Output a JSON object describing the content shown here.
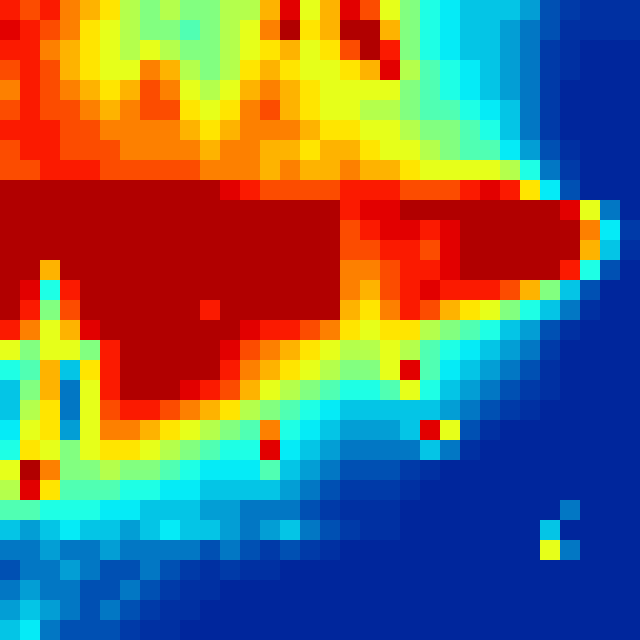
{
  "chart_data": {
    "type": "heatmap",
    "color": "Jet",
    "zlim": [
      0,
      1
    ],
    "tick_labels": false,
    "z": [
      [
        0.85,
        0.8,
        0.85,
        0.75,
        0.7,
        0.65,
        0.55,
        0.5,
        0.55,
        0.5,
        0.5,
        0.55,
        0.55,
        0.7,
        0.9,
        0.6,
        0.7,
        0.9,
        0.8,
        0.6,
        0.5,
        0.4,
        0.35,
        0.3,
        0.3,
        0.3,
        0.25,
        0.15,
        0.12,
        0.1,
        0.1,
        0.1
      ],
      [
        0.9,
        0.85,
        0.8,
        0.75,
        0.65,
        0.6,
        0.55,
        0.5,
        0.5,
        0.45,
        0.5,
        0.55,
        0.6,
        0.75,
        0.95,
        0.65,
        0.7,
        0.95,
        0.95,
        0.7,
        0.5,
        0.4,
        0.35,
        0.3,
        0.3,
        0.25,
        0.2,
        0.15,
        0.1,
        0.1,
        0.1,
        0.1
      ],
      [
        0.85,
        0.85,
        0.75,
        0.7,
        0.65,
        0.6,
        0.55,
        0.6,
        0.55,
        0.5,
        0.5,
        0.55,
        0.6,
        0.65,
        0.7,
        0.6,
        0.65,
        0.8,
        0.95,
        0.85,
        0.5,
        0.4,
        0.35,
        0.3,
        0.3,
        0.25,
        0.2,
        0.12,
        0.1,
        0.08,
        0.08,
        0.08
      ],
      [
        0.8,
        0.85,
        0.8,
        0.7,
        0.65,
        0.6,
        0.6,
        0.75,
        0.7,
        0.55,
        0.5,
        0.55,
        0.65,
        0.7,
        0.65,
        0.6,
        0.6,
        0.65,
        0.7,
        0.9,
        0.55,
        0.45,
        0.4,
        0.35,
        0.3,
        0.25,
        0.2,
        0.12,
        0.1,
        0.08,
        0.08,
        0.08
      ],
      [
        0.75,
        0.85,
        0.8,
        0.75,
        0.7,
        0.65,
        0.7,
        0.8,
        0.75,
        0.6,
        0.55,
        0.6,
        0.7,
        0.75,
        0.7,
        0.65,
        0.6,
        0.6,
        0.6,
        0.6,
        0.5,
        0.45,
        0.4,
        0.35,
        0.3,
        0.25,
        0.2,
        0.12,
        0.08,
        0.08,
        0.08,
        0.08
      ],
      [
        0.8,
        0.85,
        0.8,
        0.8,
        0.75,
        0.7,
        0.75,
        0.8,
        0.8,
        0.65,
        0.6,
        0.65,
        0.75,
        0.8,
        0.7,
        0.65,
        0.6,
        0.6,
        0.55,
        0.55,
        0.5,
        0.45,
        0.45,
        0.4,
        0.35,
        0.3,
        0.2,
        0.12,
        0.08,
        0.08,
        0.08,
        0.08
      ],
      [
        0.85,
        0.85,
        0.85,
        0.8,
        0.8,
        0.75,
        0.75,
        0.75,
        0.75,
        0.7,
        0.65,
        0.7,
        0.75,
        0.75,
        0.75,
        0.7,
        0.65,
        0.65,
        0.6,
        0.6,
        0.55,
        0.5,
        0.5,
        0.45,
        0.4,
        0.3,
        0.2,
        0.12,
        0.08,
        0.08,
        0.08,
        0.08
      ],
      [
        0.8,
        0.85,
        0.85,
        0.8,
        0.8,
        0.8,
        0.75,
        0.75,
        0.75,
        0.75,
        0.7,
        0.75,
        0.75,
        0.7,
        0.7,
        0.65,
        0.7,
        0.7,
        0.65,
        0.6,
        0.6,
        0.55,
        0.5,
        0.45,
        0.45,
        0.35,
        0.25,
        0.15,
        0.1,
        0.08,
        0.08,
        0.08
      ],
      [
        0.8,
        0.8,
        0.85,
        0.85,
        0.85,
        0.8,
        0.8,
        0.8,
        0.8,
        0.8,
        0.75,
        0.75,
        0.75,
        0.7,
        0.75,
        0.7,
        0.7,
        0.75,
        0.7,
        0.7,
        0.65,
        0.6,
        0.6,
        0.6,
        0.6,
        0.55,
        0.4,
        0.2,
        0.12,
        0.08,
        0.08,
        0.08
      ],
      [
        0.95,
        0.95,
        0.95,
        0.95,
        0.95,
        0.95,
        0.95,
        0.95,
        0.95,
        0.95,
        0.95,
        0.9,
        0.85,
        0.8,
        0.8,
        0.8,
        0.8,
        0.85,
        0.85,
        0.85,
        0.8,
        0.8,
        0.8,
        0.85,
        0.9,
        0.85,
        0.65,
        0.35,
        0.15,
        0.08,
        0.08,
        0.08
      ],
      [
        0.95,
        0.95,
        0.95,
        0.95,
        0.95,
        0.95,
        0.95,
        0.95,
        0.95,
        0.95,
        0.95,
        0.95,
        0.95,
        0.95,
        0.95,
        0.95,
        0.95,
        0.85,
        0.9,
        0.9,
        0.95,
        0.95,
        0.95,
        0.95,
        0.95,
        0.95,
        0.95,
        0.95,
        0.9,
        0.6,
        0.2,
        0.08
      ],
      [
        0.95,
        0.95,
        0.95,
        0.95,
        0.95,
        0.95,
        0.95,
        0.95,
        0.95,
        0.95,
        0.95,
        0.95,
        0.95,
        0.95,
        0.95,
        0.95,
        0.95,
        0.8,
        0.85,
        0.9,
        0.9,
        0.85,
        0.9,
        0.95,
        0.95,
        0.95,
        0.95,
        0.95,
        0.95,
        0.75,
        0.35,
        0.12
      ],
      [
        0.95,
        0.95,
        0.95,
        0.95,
        0.95,
        0.95,
        0.95,
        0.95,
        0.95,
        0.95,
        0.95,
        0.95,
        0.95,
        0.95,
        0.95,
        0.95,
        0.95,
        0.8,
        0.8,
        0.85,
        0.85,
        0.8,
        0.9,
        0.95,
        0.95,
        0.95,
        0.95,
        0.95,
        0.95,
        0.7,
        0.3,
        0.1
      ],
      [
        0.95,
        0.95,
        0.7,
        0.95,
        0.95,
        0.95,
        0.95,
        0.95,
        0.95,
        0.95,
        0.95,
        0.95,
        0.95,
        0.95,
        0.95,
        0.95,
        0.95,
        0.75,
        0.75,
        0.8,
        0.85,
        0.85,
        0.9,
        0.95,
        0.95,
        0.95,
        0.95,
        0.95,
        0.85,
        0.4,
        0.15,
        0.08
      ],
      [
        0.95,
        0.9,
        0.4,
        0.85,
        0.95,
        0.95,
        0.95,
        0.95,
        0.95,
        0.95,
        0.95,
        0.95,
        0.95,
        0.95,
        0.95,
        0.95,
        0.95,
        0.75,
        0.7,
        0.8,
        0.85,
        0.9,
        0.85,
        0.85,
        0.85,
        0.8,
        0.7,
        0.5,
        0.3,
        0.15,
        0.08,
        0.08
      ],
      [
        0.95,
        0.85,
        0.5,
        0.8,
        0.95,
        0.95,
        0.95,
        0.95,
        0.95,
        0.95,
        0.85,
        0.95,
        0.95,
        0.95,
        0.95,
        0.95,
        0.95,
        0.7,
        0.65,
        0.75,
        0.85,
        0.8,
        0.7,
        0.65,
        0.6,
        0.5,
        0.4,
        0.3,
        0.2,
        0.1,
        0.08,
        0.08
      ],
      [
        0.85,
        0.75,
        0.6,
        0.7,
        0.9,
        0.95,
        0.95,
        0.95,
        0.95,
        0.95,
        0.95,
        0.95,
        0.9,
        0.85,
        0.85,
        0.8,
        0.75,
        0.65,
        0.6,
        0.65,
        0.65,
        0.55,
        0.5,
        0.45,
        0.4,
        0.3,
        0.25,
        0.15,
        0.1,
        0.08,
        0.08,
        0.08
      ],
      [
        0.6,
        0.5,
        0.6,
        0.6,
        0.5,
        0.85,
        0.95,
        0.95,
        0.95,
        0.95,
        0.95,
        0.9,
        0.8,
        0.75,
        0.7,
        0.65,
        0.6,
        0.55,
        0.55,
        0.6,
        0.55,
        0.45,
        0.4,
        0.35,
        0.3,
        0.25,
        0.2,
        0.12,
        0.08,
        0.08,
        0.08,
        0.08
      ],
      [
        0.4,
        0.45,
        0.7,
        0.3,
        0.65,
        0.85,
        0.95,
        0.95,
        0.95,
        0.95,
        0.95,
        0.85,
        0.75,
        0.7,
        0.65,
        0.6,
        0.55,
        0.5,
        0.5,
        0.6,
        0.9,
        0.45,
        0.35,
        0.3,
        0.25,
        0.2,
        0.15,
        0.1,
        0.08,
        0.08,
        0.08,
        0.08
      ],
      [
        0.3,
        0.5,
        0.7,
        0.2,
        0.6,
        0.85,
        0.95,
        0.95,
        0.95,
        0.9,
        0.85,
        0.8,
        0.7,
        0.6,
        0.55,
        0.5,
        0.45,
        0.4,
        0.4,
        0.45,
        0.6,
        0.4,
        0.3,
        0.25,
        0.2,
        0.15,
        0.12,
        0.1,
        0.08,
        0.08,
        0.08,
        0.08
      ],
      [
        0.3,
        0.55,
        0.65,
        0.2,
        0.6,
        0.8,
        0.85,
        0.85,
        0.8,
        0.75,
        0.7,
        0.65,
        0.55,
        0.5,
        0.45,
        0.4,
        0.35,
        0.3,
        0.3,
        0.3,
        0.3,
        0.3,
        0.25,
        0.2,
        0.15,
        0.12,
        0.1,
        0.08,
        0.08,
        0.08,
        0.08,
        0.08
      ],
      [
        0.35,
        0.6,
        0.65,
        0.25,
        0.6,
        0.75,
        0.75,
        0.7,
        0.65,
        0.6,
        0.55,
        0.5,
        0.45,
        0.75,
        0.4,
        0.35,
        0.3,
        0.25,
        0.25,
        0.25,
        0.3,
        0.9,
        0.6,
        0.15,
        0.1,
        0.08,
        0.08,
        0.08,
        0.08,
        0.08,
        0.08,
        0.08
      ],
      [
        0.4,
        0.65,
        0.6,
        0.5,
        0.6,
        0.65,
        0.65,
        0.6,
        0.55,
        0.5,
        0.45,
        0.4,
        0.4,
        0.9,
        0.35,
        0.3,
        0.25,
        0.2,
        0.2,
        0.2,
        0.2,
        0.3,
        0.2,
        0.1,
        0.08,
        0.08,
        0.08,
        0.08,
        0.08,
        0.08,
        0.08,
        0.08
      ],
      [
        0.6,
        0.95,
        0.75,
        0.5,
        0.5,
        0.55,
        0.5,
        0.5,
        0.45,
        0.4,
        0.35,
        0.35,
        0.35,
        0.45,
        0.3,
        0.25,
        0.2,
        0.15,
        0.15,
        0.15,
        0.12,
        0.1,
        0.08,
        0.08,
        0.08,
        0.08,
        0.08,
        0.08,
        0.08,
        0.08,
        0.08,
        0.08
      ],
      [
        0.55,
        0.9,
        0.65,
        0.45,
        0.45,
        0.45,
        0.4,
        0.4,
        0.35,
        0.35,
        0.3,
        0.3,
        0.3,
        0.3,
        0.25,
        0.2,
        0.15,
        0.12,
        0.12,
        0.12,
        0.1,
        0.08,
        0.08,
        0.08,
        0.08,
        0.08,
        0.08,
        0.08,
        0.08,
        0.08,
        0.08,
        0.08
      ],
      [
        0.45,
        0.45,
        0.4,
        0.4,
        0.4,
        0.35,
        0.35,
        0.3,
        0.3,
        0.3,
        0.25,
        0.25,
        0.2,
        0.2,
        0.2,
        0.15,
        0.12,
        0.1,
        0.1,
        0.1,
        0.08,
        0.08,
        0.08,
        0.08,
        0.08,
        0.08,
        0.08,
        0.08,
        0.2,
        0.08,
        0.08,
        0.08
      ],
      [
        0.3,
        0.25,
        0.3,
        0.35,
        0.3,
        0.3,
        0.25,
        0.3,
        0.35,
        0.3,
        0.3,
        0.25,
        0.2,
        0.25,
        0.3,
        0.2,
        0.15,
        0.12,
        0.1,
        0.1,
        0.08,
        0.08,
        0.08,
        0.08,
        0.08,
        0.08,
        0.08,
        0.3,
        0.08,
        0.08,
        0.08,
        0.08
      ],
      [
        0.2,
        0.2,
        0.25,
        0.2,
        0.2,
        0.25,
        0.2,
        0.2,
        0.2,
        0.2,
        0.15,
        0.2,
        0.15,
        0.12,
        0.15,
        0.12,
        0.1,
        0.08,
        0.08,
        0.08,
        0.08,
        0.08,
        0.08,
        0.08,
        0.08,
        0.08,
        0.08,
        0.6,
        0.2,
        0.08,
        0.08,
        0.08
      ],
      [
        0.15,
        0.2,
        0.2,
        0.25,
        0.2,
        0.15,
        0.15,
        0.2,
        0.15,
        0.12,
        0.1,
        0.12,
        0.1,
        0.1,
        0.08,
        0.08,
        0.08,
        0.08,
        0.08,
        0.08,
        0.08,
        0.08,
        0.08,
        0.08,
        0.08,
        0.08,
        0.08,
        0.08,
        0.08,
        0.08,
        0.08,
        0.08
      ],
      [
        0.2,
        0.25,
        0.2,
        0.2,
        0.15,
        0.15,
        0.2,
        0.15,
        0.12,
        0.1,
        0.1,
        0.08,
        0.08,
        0.08,
        0.08,
        0.08,
        0.08,
        0.08,
        0.08,
        0.08,
        0.08,
        0.08,
        0.08,
        0.08,
        0.08,
        0.08,
        0.08,
        0.08,
        0.08,
        0.08,
        0.08,
        0.08
      ],
      [
        0.25,
        0.3,
        0.25,
        0.2,
        0.15,
        0.2,
        0.15,
        0.12,
        0.1,
        0.1,
        0.08,
        0.08,
        0.08,
        0.08,
        0.08,
        0.08,
        0.08,
        0.08,
        0.08,
        0.08,
        0.08,
        0.08,
        0.08,
        0.08,
        0.08,
        0.08,
        0.08,
        0.08,
        0.08,
        0.08,
        0.08,
        0.08
      ],
      [
        0.3,
        0.35,
        0.2,
        0.15,
        0.15,
        0.15,
        0.12,
        0.1,
        0.1,
        0.08,
        0.08,
        0.08,
        0.08,
        0.08,
        0.08,
        0.08,
        0.08,
        0.08,
        0.08,
        0.08,
        0.08,
        0.08,
        0.08,
        0.08,
        0.08,
        0.08,
        0.08,
        0.08,
        0.08,
        0.08,
        0.08,
        0.08
      ]
    ]
  }
}
